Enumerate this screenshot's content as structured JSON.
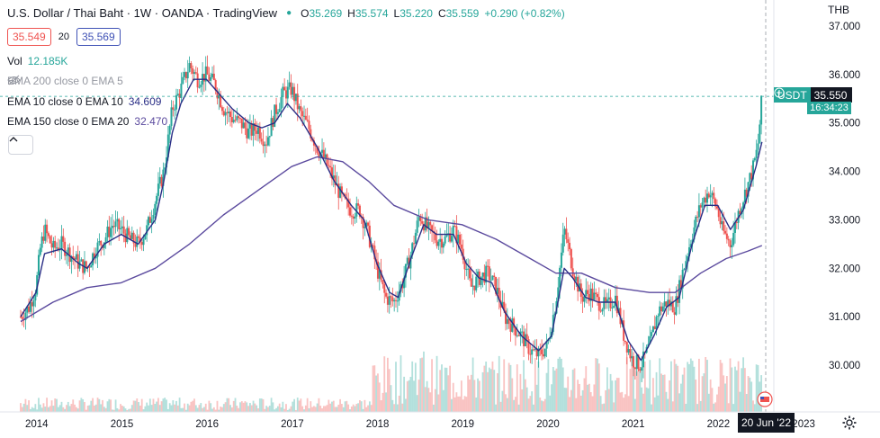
{
  "header": {
    "title": "U.S. Dollar / Thai Baht · 1W · OANDA · TradingView",
    "ohlc": {
      "o_label": "O",
      "o_value": "35.269",
      "h_label": "H",
      "h_value": "35.574",
      "l_label": "L",
      "l_value": "35.220",
      "c_label": "C",
      "c_value": "35.559",
      "change": "+0.290 (+0.82%)"
    },
    "bid": "35.549",
    "spread": "20",
    "ask": "35.569"
  },
  "indicators": {
    "vol_label": "Vol",
    "vol_value": "12.185K",
    "ema200": "EMA 200 close 0 EMA 5",
    "ema10_label": "EMA 10 close 0 EMA 10",
    "ema10_value": "34.609",
    "ema150_label": "EMA 150 close 0 EMA 20",
    "ema150_value": "32.470"
  },
  "price_axis": {
    "currency": "THB",
    "ticks": [
      "37.000",
      "36.000",
      "35.000",
      "34.000",
      "33.000",
      "32.000",
      "31.000",
      "30.000"
    ],
    "last_symbol": "USDT",
    "last_price": "35.550",
    "countdown": "16:34:23"
  },
  "time_axis": {
    "ticks": [
      "2014",
      "2015",
      "2016",
      "2017",
      "2018",
      "2019",
      "2020",
      "2021",
      "2022",
      "2023"
    ],
    "crosshair_date": "20 Jun '22"
  },
  "colors": {
    "up": "#26a69a",
    "down": "#ef5350",
    "ema10": "#2a2e86",
    "ema150": "#5b4a9e",
    "bid_border": "#ef5350",
    "ask_border": "#3f51b5",
    "text": "#131722",
    "muted": "#9598a1"
  },
  "chart_data": {
    "type": "candlestick",
    "interval": "1W",
    "x_range": [
      2013.8,
      2023.1
    ],
    "y_range": [
      29.5,
      37.2
    ],
    "grid": false,
    "close_path": [
      [
        2013.82,
        31.0
      ],
      [
        2013.92,
        31.2
      ],
      [
        2014.0,
        31.6
      ],
      [
        2014.05,
        32.4
      ],
      [
        2014.1,
        32.8
      ],
      [
        2014.2,
        32.4
      ],
      [
        2014.3,
        32.5
      ],
      [
        2014.4,
        32.3
      ],
      [
        2014.5,
        32.1
      ],
      [
        2014.6,
        32.0
      ],
      [
        2014.7,
        32.4
      ],
      [
        2014.8,
        32.6
      ],
      [
        2014.9,
        32.9
      ],
      [
        2015.0,
        32.8
      ],
      [
        2015.1,
        32.6
      ],
      [
        2015.2,
        32.5
      ],
      [
        2015.3,
        32.8
      ],
      [
        2015.4,
        33.4
      ],
      [
        2015.5,
        34.0
      ],
      [
        2015.6,
        35.3
      ],
      [
        2015.7,
        35.7
      ],
      [
        2015.8,
        36.2
      ],
      [
        2015.9,
        35.9
      ],
      [
        2016.0,
        36.0
      ],
      [
        2016.1,
        35.8
      ],
      [
        2016.2,
        35.3
      ],
      [
        2016.3,
        35.1
      ],
      [
        2016.4,
        35.0
      ],
      [
        2016.5,
        34.8
      ],
      [
        2016.6,
        34.9
      ],
      [
        2016.7,
        34.6
      ],
      [
        2016.8,
        35.2
      ],
      [
        2016.9,
        35.6
      ],
      [
        2017.0,
        35.7
      ],
      [
        2017.1,
        35.2
      ],
      [
        2017.2,
        34.9
      ],
      [
        2017.3,
        34.5
      ],
      [
        2017.4,
        34.2
      ],
      [
        2017.5,
        33.8
      ],
      [
        2017.6,
        33.4
      ],
      [
        2017.7,
        33.2
      ],
      [
        2017.8,
        33.2
      ],
      [
        2017.9,
        32.7
      ],
      [
        2018.0,
        32.0
      ],
      [
        2018.1,
        31.4
      ],
      [
        2018.2,
        31.3
      ],
      [
        2018.3,
        31.7
      ],
      [
        2018.4,
        32.3
      ],
      [
        2018.5,
        33.1
      ],
      [
        2018.6,
        32.8
      ],
      [
        2018.7,
        32.6
      ],
      [
        2018.8,
        32.6
      ],
      [
        2018.9,
        32.8
      ],
      [
        2019.0,
        32.4
      ],
      [
        2019.1,
        31.6
      ],
      [
        2019.2,
        31.8
      ],
      [
        2019.3,
        31.9
      ],
      [
        2019.4,
        31.6
      ],
      [
        2019.5,
        31.0
      ],
      [
        2019.6,
        30.8
      ],
      [
        2019.7,
        30.6
      ],
      [
        2019.8,
        30.3
      ],
      [
        2019.9,
        30.2
      ],
      [
        2020.0,
        30.4
      ],
      [
        2020.1,
        31.3
      ],
      [
        2020.2,
        32.8
      ],
      [
        2020.3,
        32.0
      ],
      [
        2020.4,
        31.4
      ],
      [
        2020.5,
        31.5
      ],
      [
        2020.6,
        31.3
      ],
      [
        2020.7,
        31.2
      ],
      [
        2020.8,
        31.4
      ],
      [
        2020.9,
        30.6
      ],
      [
        2021.0,
        30.1
      ],
      [
        2021.1,
        30.0
      ],
      [
        2021.2,
        30.4
      ],
      [
        2021.3,
        31.1
      ],
      [
        2021.4,
        31.3
      ],
      [
        2021.5,
        31.2
      ],
      [
        2021.6,
        32.0
      ],
      [
        2021.7,
        32.7
      ],
      [
        2021.8,
        33.3
      ],
      [
        2021.9,
        33.6
      ],
      [
        2022.0,
        33.2
      ],
      [
        2022.05,
        32.8
      ],
      [
        2022.15,
        32.5
      ],
      [
        2022.25,
        33.2
      ],
      [
        2022.35,
        33.7
      ],
      [
        2022.42,
        34.1
      ],
      [
        2022.47,
        34.5
      ],
      [
        2022.52,
        35.55
      ]
    ],
    "ema10": [
      [
        2013.82,
        31.0
      ],
      [
        2014.0,
        31.5
      ],
      [
        2014.1,
        32.3
      ],
      [
        2014.3,
        32.4
      ],
      [
        2014.5,
        32.1
      ],
      [
        2014.6,
        32.0
      ],
      [
        2014.8,
        32.5
      ],
      [
        2015.0,
        32.7
      ],
      [
        2015.2,
        32.5
      ],
      [
        2015.4,
        33.0
      ],
      [
        2015.5,
        33.8
      ],
      [
        2015.6,
        34.8
      ],
      [
        2015.7,
        35.4
      ],
      [
        2015.85,
        35.9
      ],
      [
        2016.0,
        35.9
      ],
      [
        2016.1,
        35.7
      ],
      [
        2016.3,
        35.3
      ],
      [
        2016.5,
        35.0
      ],
      [
        2016.65,
        34.9
      ],
      [
        2016.8,
        35.0
      ],
      [
        2016.95,
        35.4
      ],
      [
        2017.1,
        35.1
      ],
      [
        2017.3,
        34.5
      ],
      [
        2017.5,
        33.8
      ],
      [
        2017.7,
        33.3
      ],
      [
        2017.85,
        33.0
      ],
      [
        2018.0,
        32.1
      ],
      [
        2018.15,
        31.5
      ],
      [
        2018.25,
        31.4
      ],
      [
        2018.4,
        32.2
      ],
      [
        2018.55,
        32.9
      ],
      [
        2018.7,
        32.7
      ],
      [
        2018.9,
        32.7
      ],
      [
        2019.05,
        32.1
      ],
      [
        2019.2,
        31.8
      ],
      [
        2019.35,
        31.7
      ],
      [
        2019.5,
        31.1
      ],
      [
        2019.7,
        30.6
      ],
      [
        2019.9,
        30.3
      ],
      [
        2020.05,
        30.6
      ],
      [
        2020.2,
        32.0
      ],
      [
        2020.3,
        31.8
      ],
      [
        2020.45,
        31.4
      ],
      [
        2020.6,
        31.3
      ],
      [
        2020.8,
        31.3
      ],
      [
        2020.95,
        30.5
      ],
      [
        2021.1,
        30.1
      ],
      [
        2021.25,
        30.6
      ],
      [
        2021.4,
        31.2
      ],
      [
        2021.55,
        31.4
      ],
      [
        2021.7,
        32.5
      ],
      [
        2021.85,
        33.3
      ],
      [
        2022.0,
        33.3
      ],
      [
        2022.15,
        32.8
      ],
      [
        2022.3,
        33.2
      ],
      [
        2022.45,
        34.1
      ],
      [
        2022.52,
        34.609
      ]
    ],
    "ema150": [
      [
        2013.82,
        30.9
      ],
      [
        2014.2,
        31.3
      ],
      [
        2014.6,
        31.6
      ],
      [
        2015.0,
        31.7
      ],
      [
        2015.4,
        32.0
      ],
      [
        2015.8,
        32.5
      ],
      [
        2016.2,
        33.1
      ],
      [
        2016.6,
        33.6
      ],
      [
        2017.0,
        34.1
      ],
      [
        2017.3,
        34.3
      ],
      [
        2017.6,
        34.2
      ],
      [
        2017.9,
        33.8
      ],
      [
        2018.2,
        33.3
      ],
      [
        2018.6,
        33.0
      ],
      [
        2019.0,
        32.9
      ],
      [
        2019.4,
        32.6
      ],
      [
        2019.8,
        32.2
      ],
      [
        2020.1,
        31.9
      ],
      [
        2020.4,
        31.9
      ],
      [
        2020.8,
        31.6
      ],
      [
        2021.2,
        31.5
      ],
      [
        2021.5,
        31.5
      ],
      [
        2021.8,
        31.9
      ],
      [
        2022.1,
        32.2
      ],
      [
        2022.35,
        32.35
      ],
      [
        2022.52,
        32.47
      ]
    ]
  }
}
